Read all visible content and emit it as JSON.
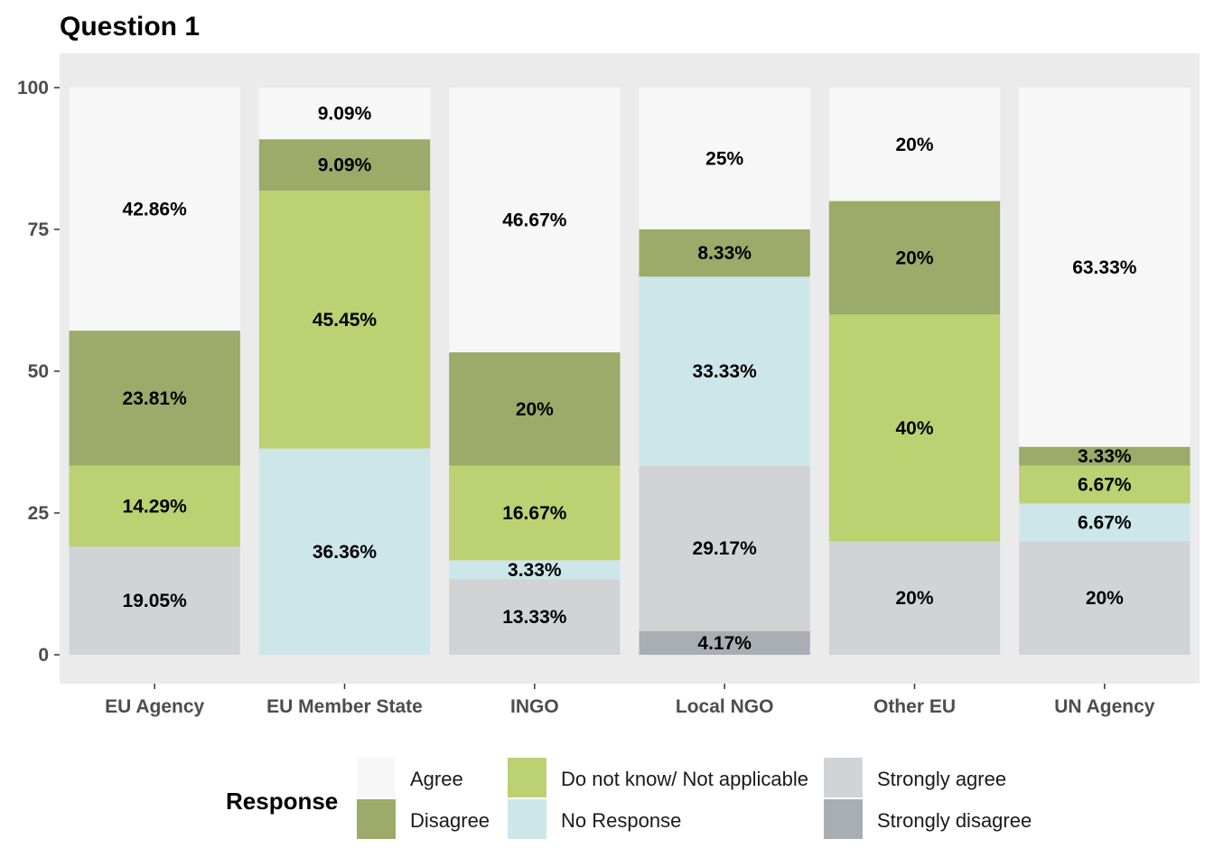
{
  "chart_data": {
    "type": "bar",
    "stacked": true,
    "title": "Question 1",
    "xlabel": "",
    "ylabel": "",
    "ylim": [
      0,
      106
    ],
    "y_ticks": [
      0,
      25,
      50,
      75,
      100
    ],
    "grid": false,
    "panel_background": "#ebebeb",
    "categories": [
      "EU Agency",
      "EU Member State",
      "INGO",
      "Local NGO",
      "Other EU",
      "UN Agency"
    ],
    "legend": {
      "title": "Response",
      "position": "bottom",
      "items": [
        {
          "name": "Agree",
          "color": "#f7f7f7"
        },
        {
          "name": "Disagree",
          "color": "#9caa6a"
        },
        {
          "name": "Do not know/ Not applicable",
          "color": "#bbd172"
        },
        {
          "name": "No Response",
          "color": "#cde6ea"
        },
        {
          "name": "Strongly agree",
          "color": "#d1d3d6"
        },
        {
          "name": "Strongly disagree",
          "color": "#a9aeb5"
        }
      ]
    },
    "stack_order_bottom_to_top": [
      "Strongly disagree",
      "Strongly agree",
      "No Response",
      "Do not know/ Not applicable",
      "Disagree",
      "Agree"
    ],
    "series": [
      {
        "name": "Agree",
        "values": [
          42.86,
          9.09,
          46.67,
          25,
          20,
          63.33
        ],
        "labels": [
          "42.86%",
          "9.09%",
          "46.67%",
          "25%",
          "20%",
          "63.33%"
        ]
      },
      {
        "name": "Disagree",
        "values": [
          23.81,
          9.09,
          20,
          8.33,
          20,
          3.33
        ],
        "labels": [
          "23.81%",
          "9.09%",
          "20%",
          "8.33%",
          "20%",
          "3.33%"
        ]
      },
      {
        "name": "Do not know/ Not applicable",
        "values": [
          14.29,
          45.45,
          16.67,
          0,
          40,
          6.67
        ],
        "labels": [
          "14.29%",
          "45.45%",
          "16.67%",
          "",
          "40%",
          "6.67%"
        ]
      },
      {
        "name": "No Response",
        "values": [
          0,
          36.36,
          3.33,
          33.33,
          0,
          6.67
        ],
        "labels": [
          "",
          "36.36%",
          "3.33%",
          "33.33%",
          "",
          "6.67%"
        ]
      },
      {
        "name": "Strongly agree",
        "values": [
          19.05,
          0,
          13.33,
          29.17,
          20,
          20
        ],
        "labels": [
          "19.05%",
          "",
          "13.33%",
          "29.17%",
          "20%",
          "20%"
        ]
      },
      {
        "name": "Strongly disagree",
        "values": [
          0,
          0,
          0,
          4.17,
          0,
          0
        ],
        "labels": [
          "",
          "",
          "",
          "4.17%",
          "",
          ""
        ]
      }
    ]
  }
}
